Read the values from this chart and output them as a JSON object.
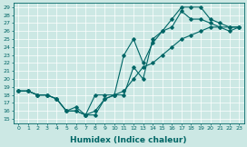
{
  "xlabel": "Humidex (Indice chaleur)",
  "bg_color": "#cce8e4",
  "line_color": "#006666",
  "grid_color": "#ffffff",
  "xlim": [
    -0.5,
    23.5
  ],
  "ylim": [
    14.5,
    29.5
  ],
  "xticks": [
    0,
    1,
    2,
    3,
    4,
    5,
    6,
    7,
    8,
    9,
    10,
    11,
    12,
    13,
    14,
    15,
    16,
    17,
    18,
    19,
    20,
    21,
    22,
    23
  ],
  "yticks": [
    15,
    16,
    17,
    18,
    19,
    20,
    21,
    22,
    23,
    24,
    25,
    26,
    27,
    28,
    29
  ],
  "series1_x": [
    0,
    1,
    2,
    3,
    4,
    5,
    6,
    7,
    8,
    9,
    10,
    11,
    12,
    13,
    14,
    15,
    16,
    17,
    18,
    19,
    20,
    21,
    22,
    23
  ],
  "series1_y": [
    18.5,
    18.5,
    18.0,
    18.0,
    17.5,
    16.0,
    16.0,
    15.5,
    16.0,
    17.5,
    18.0,
    18.5,
    20.0,
    21.5,
    22.0,
    23.0,
    24.0,
    25.0,
    25.5,
    26.0,
    26.5,
    26.5,
    26.5,
    26.5
  ],
  "series2_x": [
    0,
    1,
    2,
    3,
    4,
    5,
    6,
    7,
    8,
    9,
    10,
    11,
    12,
    13,
    14,
    15,
    16,
    17,
    18,
    19,
    20,
    21,
    22,
    23
  ],
  "series2_y": [
    18.5,
    18.5,
    18.0,
    18.0,
    17.5,
    16.0,
    16.5,
    15.5,
    15.5,
    17.5,
    18.0,
    23.0,
    25.0,
    22.0,
    24.5,
    26.0,
    27.5,
    29.0,
    29.0,
    29.0,
    27.5,
    27.0,
    26.5,
    26.5
  ],
  "series3_x": [
    0,
    1,
    2,
    3,
    4,
    5,
    6,
    7,
    8,
    9,
    10,
    11,
    12,
    13,
    14,
    15,
    16,
    17,
    18,
    19,
    20,
    21,
    22,
    23
  ],
  "series3_y": [
    18.5,
    18.5,
    18.0,
    18.0,
    17.5,
    16.0,
    16.0,
    15.5,
    18.0,
    18.0,
    18.0,
    18.0,
    21.5,
    20.0,
    25.0,
    26.0,
    26.5,
    28.5,
    27.5,
    27.5,
    27.0,
    26.5,
    26.0,
    26.5
  ]
}
